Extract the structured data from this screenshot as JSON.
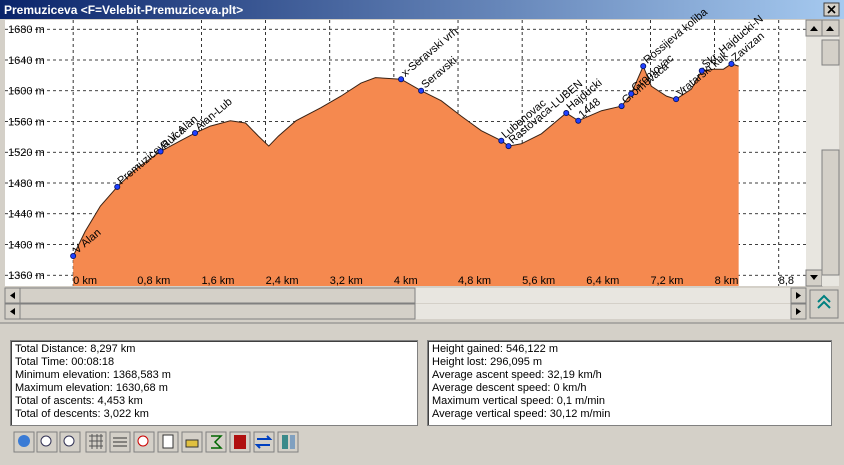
{
  "window": {
    "title": "Premuziceva <F=Velebit-Premuziceva.plt>"
  },
  "chart_data": {
    "type": "area",
    "x": [
      0,
      0.15,
      0.34,
      0.55,
      0.78,
      1.09,
      1.34,
      1.52,
      1.71,
      1.96,
      2.15,
      2.31,
      2.44,
      2.56,
      2.78,
      3.09,
      3.34,
      3.59,
      3.77,
      4.09,
      4.34,
      4.59,
      4.84,
      5.09,
      5.34,
      5.43,
      5.59,
      5.84,
      6.15,
      6.3,
      6.59,
      6.84,
      6.96,
      7.11,
      7.21,
      7.4,
      7.52,
      7.71,
      7.84,
      7.99,
      8.11,
      8.21,
      8.3
    ],
    "values": [
      1385,
      1417,
      1450,
      1475,
      1498,
      1521,
      1535,
      1545,
      1554,
      1561,
      1558,
      1541,
      1528,
      1541,
      1561,
      1578,
      1593,
      1610,
      1617,
      1615,
      1600,
      1587,
      1567,
      1548,
      1535,
      1528,
      1531,
      1544,
      1571,
      1561,
      1574,
      1580,
      1596,
      1632,
      1606,
      1593,
      1589,
      1602,
      1626,
      1628,
      1628,
      1635,
      1632
    ],
    "color": "#f5894f",
    "line_color": "#3a2214",
    "waypoints": [
      {
        "x": 0,
        "y": 1385,
        "label": "V Alan"
      },
      {
        "x": 0.55,
        "y": 1475,
        "label": "Premuziceva V. Alan"
      },
      {
        "x": 1.09,
        "y": 1521,
        "label": "Ruica"
      },
      {
        "x": 1.52,
        "y": 1545,
        "label": "Alan-Lub"
      },
      {
        "x": 4.09,
        "y": 1615,
        "label": "x-Seravski vrh"
      },
      {
        "x": 4.34,
        "y": 1600,
        "label": "Seravski"
      },
      {
        "x": 5.34,
        "y": 1535,
        "label": "Lubenovac"
      },
      {
        "x": 5.43,
        "y": 1528,
        "label": "Rastovaca-LUBEN"
      },
      {
        "x": 6.15,
        "y": 1571,
        "label": "Hajducki"
      },
      {
        "x": 6.3,
        "y": 1561,
        "label": "1448"
      },
      {
        "x": 6.84,
        "y": 1580,
        "label": "Gromovaca"
      },
      {
        "x": 6.96,
        "y": 1596,
        "label": "Gromovac"
      },
      {
        "x": 7.11,
        "y": 1632,
        "label": "Rossijeva koliba"
      },
      {
        "x": 7.52,
        "y": 1589,
        "label": "Vratarski kuk"
      },
      {
        "x": 7.84,
        "y": 1626,
        "label": "Skr. Hajducki-N"
      },
      {
        "x": 8.21,
        "y": 1635,
        "label": "Zavizan"
      }
    ],
    "marker_color": "#2040ff",
    "xlim": [
      -0.85,
      9.14
    ],
    "ylim": [
      1346,
      1692
    ],
    "xticks": [
      {
        "value": 0,
        "label": "0 km"
      },
      {
        "value": 0.8,
        "label": "0,8 km"
      },
      {
        "value": 1.6,
        "label": "1,6 km"
      },
      {
        "value": 2.4,
        "label": "2,4 km"
      },
      {
        "value": 3.2,
        "label": "3,2 km"
      },
      {
        "value": 4,
        "label": "4 km"
      },
      {
        "value": 4.8,
        "label": "4,8 km"
      },
      {
        "value": 5.6,
        "label": "5,6 km"
      },
      {
        "value": 6.4,
        "label": "6,4 km"
      },
      {
        "value": 7.2,
        "label": "7,2 km"
      },
      {
        "value": 8,
        "label": "8 km"
      },
      {
        "value": 8.8,
        "label": "8,8"
      }
    ],
    "yticks": [
      {
        "value": 1360,
        "label": "1360 m"
      },
      {
        "value": 1400,
        "label": "1400 m"
      },
      {
        "value": 1440,
        "label": "1440 m"
      },
      {
        "value": 1480,
        "label": "1480 m"
      },
      {
        "value": 1520,
        "label": "1520 m"
      },
      {
        "value": 1560,
        "label": "1560 m"
      },
      {
        "value": 1600,
        "label": "1600 m"
      },
      {
        "value": 1640,
        "label": "1640 m"
      },
      {
        "value": 1680,
        "label": "1680 m"
      }
    ],
    "grid": true
  },
  "stats_left": [
    "Total Distance: 8,297 km",
    "Total Time: 00:08:18",
    "Minimum elevation: 1368,583 m",
    "Maximum elevation: 1630,68 m",
    "Total of ascents: 4,453 km",
    "Total of descents: 3,022 km"
  ],
  "stats_right": [
    "Height gained: 546,122 m",
    "Height lost: 296,095 m",
    "Average ascent speed: 32,19 km/h",
    "Average descent speed: 0 km/h",
    "Maximum vertical speed: 0,1 m/min",
    "Average vertical speed: 30,12 m/min"
  ]
}
